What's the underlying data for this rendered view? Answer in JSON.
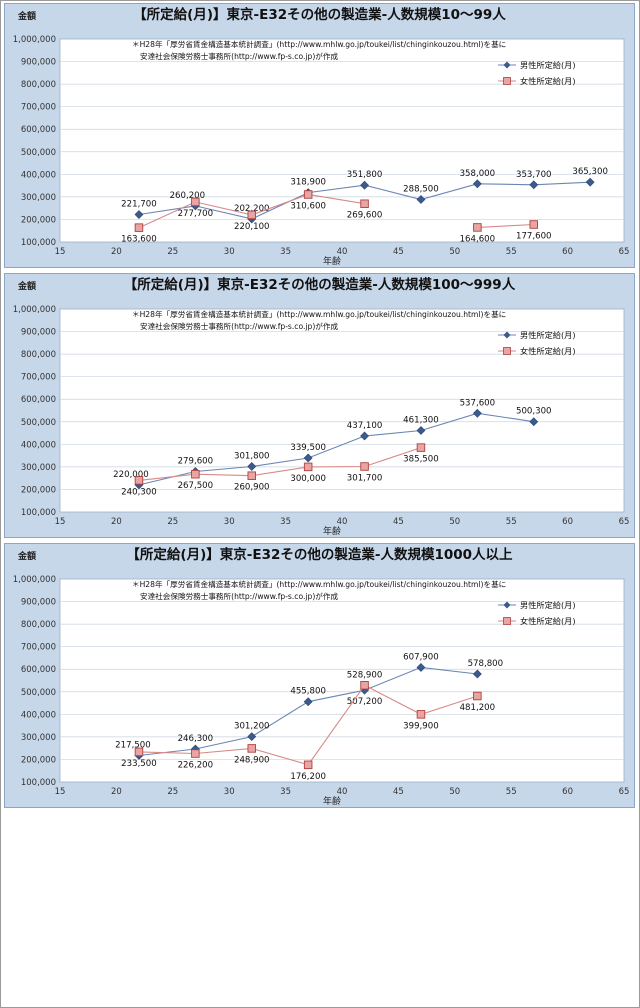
{
  "chart_data": [
    {
      "type": "line",
      "title": "【所定給(月)】東京-E32その他の製造業-人数規模10～99人",
      "ylabel": "金額",
      "xlabel": "年齢",
      "note_line1": "＊H28年「厚労省賃金構造基本統計調査」(http://www.mhlw.go.jp/toukei/list/chinginkouzou.html)を基に",
      "note_line2": "安達社会保険労務士事務所(http://www.fp-s.co.jp)が作成",
      "xlim": [
        15,
        65
      ],
      "ylim": [
        100000,
        1000000
      ],
      "xticks": [
        "15",
        "20",
        "25",
        "30",
        "35",
        "40",
        "45",
        "50",
        "55",
        "60",
        "65"
      ],
      "yticks": [
        "100,000",
        "200,000",
        "300,000",
        "400,000",
        "500,000",
        "600,000",
        "700,000",
        "800,000",
        "900,000",
        "1,000,000"
      ],
      "legend_position": "top-right",
      "grid": true,
      "series": [
        {
          "name": "男性所定給(月)",
          "color": "#3b5b8f",
          "marker": "diamond",
          "points": [
            [
              22,
              221700
            ],
            [
              27,
              260200
            ],
            [
              32,
              202200
            ],
            [
              37,
              318900
            ],
            [
              42,
              351800
            ],
            [
              47,
              288500
            ],
            [
              52,
              358000
            ],
            [
              57,
              353700
            ],
            [
              62,
              365300
            ]
          ],
          "labels": [
            "221,700",
            "260,200",
            "202,200",
            "318,900",
            "351,800",
            "288,500",
            "358,000",
            "353,700",
            "365,300"
          ]
        },
        {
          "name": "女性所定給(月)",
          "color": "#c0504d",
          "marker": "square",
          "points": [
            [
              22,
              163600
            ],
            [
              27,
              277700
            ],
            [
              32,
              220100
            ],
            [
              37,
              310600
            ],
            [
              42,
              269600
            ],
            [
              52,
              164600
            ],
            [
              57,
              177600
            ]
          ],
          "labels": [
            "163,600",
            "277,700",
            "220,100",
            "310,600",
            "269,600",
            "164,600",
            "177,600"
          ],
          "segments": [
            [
              0,
              1,
              2,
              3,
              4
            ],
            [
              5,
              6
            ]
          ]
        }
      ]
    },
    {
      "type": "line",
      "title": "【所定給(月)】東京-E32その他の製造業-人数規模100～999人",
      "ylabel": "金額",
      "xlabel": "年齢",
      "note_line1": "＊H28年「厚労省賃金構造基本統計調査」(http://www.mhlw.go.jp/toukei/list/chinginkouzou.html)を基に",
      "note_line2": "安達社会保険労務士事務所(http://www.fp-s.co.jp)が作成",
      "xlim": [
        15,
        65
      ],
      "ylim": [
        100000,
        1000000
      ],
      "xticks": [
        "15",
        "20",
        "25",
        "30",
        "35",
        "40",
        "45",
        "50",
        "55",
        "60",
        "65"
      ],
      "yticks": [
        "100,000",
        "200,000",
        "300,000",
        "400,000",
        "500,000",
        "600,000",
        "700,000",
        "800,000",
        "900,000",
        "1,000,000"
      ],
      "legend_position": "top-right",
      "grid": true,
      "series": [
        {
          "name": "男性所定給(月)",
          "color": "#3b5b8f",
          "marker": "diamond",
          "points": [
            [
              22,
              220000
            ],
            [
              27,
              279600
            ],
            [
              32,
              301800
            ],
            [
              37,
              339500
            ],
            [
              42,
              437100
            ],
            [
              47,
              461300
            ],
            [
              52,
              537600
            ],
            [
              57,
              500300
            ]
          ],
          "labels": [
            "220,000",
            "279,600",
            "301,800",
            "339,500",
            "437,100",
            "461,300",
            "537,600",
            "500,300"
          ]
        },
        {
          "name": "女性所定給(月)",
          "color": "#c0504d",
          "marker": "square",
          "points": [
            [
              22,
              240300
            ],
            [
              27,
              267500
            ],
            [
              32,
              260900
            ],
            [
              37,
              300000
            ],
            [
              42,
              301700
            ],
            [
              47,
              385500
            ]
          ],
          "labels": [
            "240,300",
            "267,500",
            "260,900",
            "300,000",
            "301,700",
            "385,500"
          ]
        }
      ]
    },
    {
      "type": "line",
      "title": "【所定給(月)】東京-E32その他の製造業-人数規模1000人以上",
      "ylabel": "金額",
      "xlabel": "年齢",
      "note_line1": "＊H28年「厚労省賃金構造基本統計調査」(http://www.mhlw.go.jp/toukei/list/chinginkouzou.html)を基に",
      "note_line2": "安達社会保険労務士事務所(http://www.fp-s.co.jp)が作成",
      "xlim": [
        15,
        65
      ],
      "ylim": [
        100000,
        1000000
      ],
      "xticks": [
        "15",
        "20",
        "25",
        "30",
        "35",
        "40",
        "45",
        "50",
        "55",
        "60",
        "65"
      ],
      "yticks": [
        "100,000",
        "200,000",
        "300,000",
        "400,000",
        "500,000",
        "600,000",
        "700,000",
        "800,000",
        "900,000",
        "1,000,000"
      ],
      "legend_position": "top-right",
      "grid": true,
      "series": [
        {
          "name": "男性所定給(月)",
          "color": "#3b5b8f",
          "marker": "diamond",
          "points": [
            [
              22,
              217500
            ],
            [
              27,
              246300
            ],
            [
              32,
              301200
            ],
            [
              37,
              455800
            ],
            [
              42,
              507200
            ],
            [
              47,
              607900
            ],
            [
              52,
              578800
            ]
          ],
          "labels": [
            "217,500",
            "246,300",
            "301,200",
            "455,800",
            "507,200",
            "607,900",
            "578,800"
          ]
        },
        {
          "name": "女性所定給(月)",
          "color": "#c0504d",
          "marker": "square",
          "points": [
            [
              22,
              233500
            ],
            [
              27,
              226200
            ],
            [
              32,
              248900
            ],
            [
              37,
              176200
            ],
            [
              42,
              528900
            ],
            [
              47,
              399900
            ],
            [
              52,
              481200
            ]
          ],
          "labels": [
            "233,500",
            "226,200",
            "248,900",
            "176,200",
            "528,900",
            "399,900",
            "481,200"
          ]
        }
      ]
    }
  ]
}
